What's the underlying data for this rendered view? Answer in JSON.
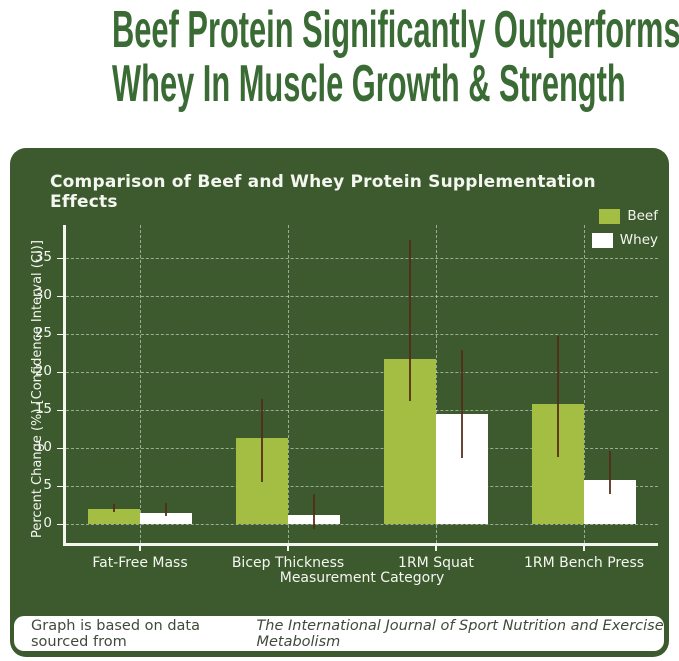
{
  "page": {
    "headline_line1": "Beef Protein Significantly Outperforms",
    "headline_line2": "Whey In Muscle Growth & Strength",
    "footer_prefix": "Graph is based on data sourced from",
    "footer_source": "The International Journal of Sport Nutrition and Exercise Metabolism"
  },
  "colors": {
    "headline_green": "#3a6b35",
    "panel_green": "#3d5a2e",
    "beef_bar_green": "#a4be44",
    "whey_bar_white": "#ffffff",
    "error_bar_maroon": "#552a18",
    "axis_white": "#f5f5f0"
  },
  "chart_data": {
    "type": "bar",
    "title": "Comparison of Beef and Whey Protein Supplementation Effects",
    "categories": [
      "Fat-Free Mass",
      "Bicep Thickness",
      "1RM Squat",
      "1RM Bench Press"
    ],
    "series": [
      {
        "name": "Beef",
        "color": "#a4be44",
        "values": [
          2.0,
          11.3,
          21.8,
          15.8
        ],
        "ci_low": [
          1.6,
          5.5,
          16.2,
          8.8
        ],
        "ci_high": [
          2.6,
          16.5,
          37.4,
          24.8
        ]
      },
      {
        "name": "Whey",
        "color": "#ffffff",
        "values": [
          1.5,
          1.2,
          14.5,
          5.8
        ],
        "ci_low": [
          1.0,
          -0.7,
          8.7,
          3.9
        ],
        "ci_high": [
          2.8,
          3.9,
          22.9,
          9.6
        ]
      }
    ],
    "xlabel": "Measurement Category",
    "ylabel": "Percent Change (%) [Confidence Interval (CI)]",
    "yticks": [
      0,
      5,
      10,
      15,
      20,
      25,
      30,
      35
    ],
    "ylim": [
      -2.5,
      39.4
    ],
    "grid": true,
    "legend_position": "upper right",
    "error_bars": true
  }
}
